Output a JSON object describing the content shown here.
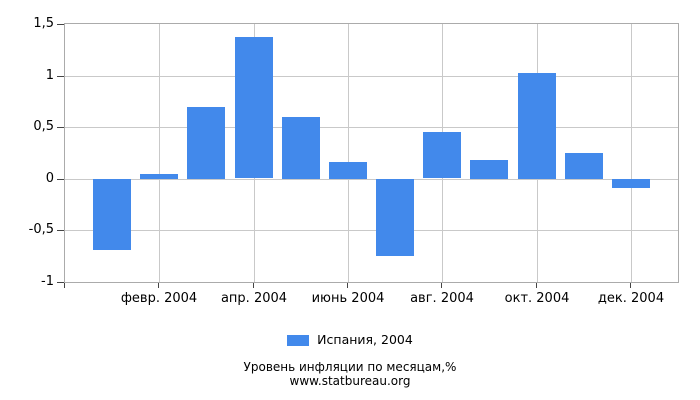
{
  "chart_data": {
    "type": "bar",
    "title": "Уровень инфляции по месяцам,%",
    "source": "www.statbureau.org",
    "series": [
      {
        "name": "Испания, 2004",
        "values": [
          -0.69,
          0.05,
          0.7,
          1.37,
          0.6,
          0.16,
          -0.75,
          0.45,
          0.18,
          1.03,
          0.25,
          -0.09
        ]
      }
    ],
    "x_tick_labels": [
      "февр. 2004",
      "апр. 2004",
      "июнь 2004",
      "авг. 2004",
      "окт. 2004",
      "дек. 2004"
    ],
    "x_tick_slots": [
      2,
      4,
      6,
      8,
      10,
      12
    ],
    "y_tick_labels": [
      "1,5",
      "1",
      "0,5",
      "0",
      "-0,5",
      "-1"
    ],
    "y_tick_values": [
      1.5,
      1.0,
      0.5,
      0.0,
      -0.5,
      -1.0
    ],
    "ylim": [
      -1.0,
      1.5
    ],
    "grid": true,
    "legend_position": "bottom",
    "colors": {
      "bar": "#4289eb",
      "gridline": "#c9c9c9",
      "border": "#ababab",
      "tick": "#444444",
      "text": "#000000",
      "background": "#ffffff"
    }
  },
  "footer": {
    "line1": "Уровень инфляции по месяцам,%",
    "line2": "www.statbureau.org"
  }
}
